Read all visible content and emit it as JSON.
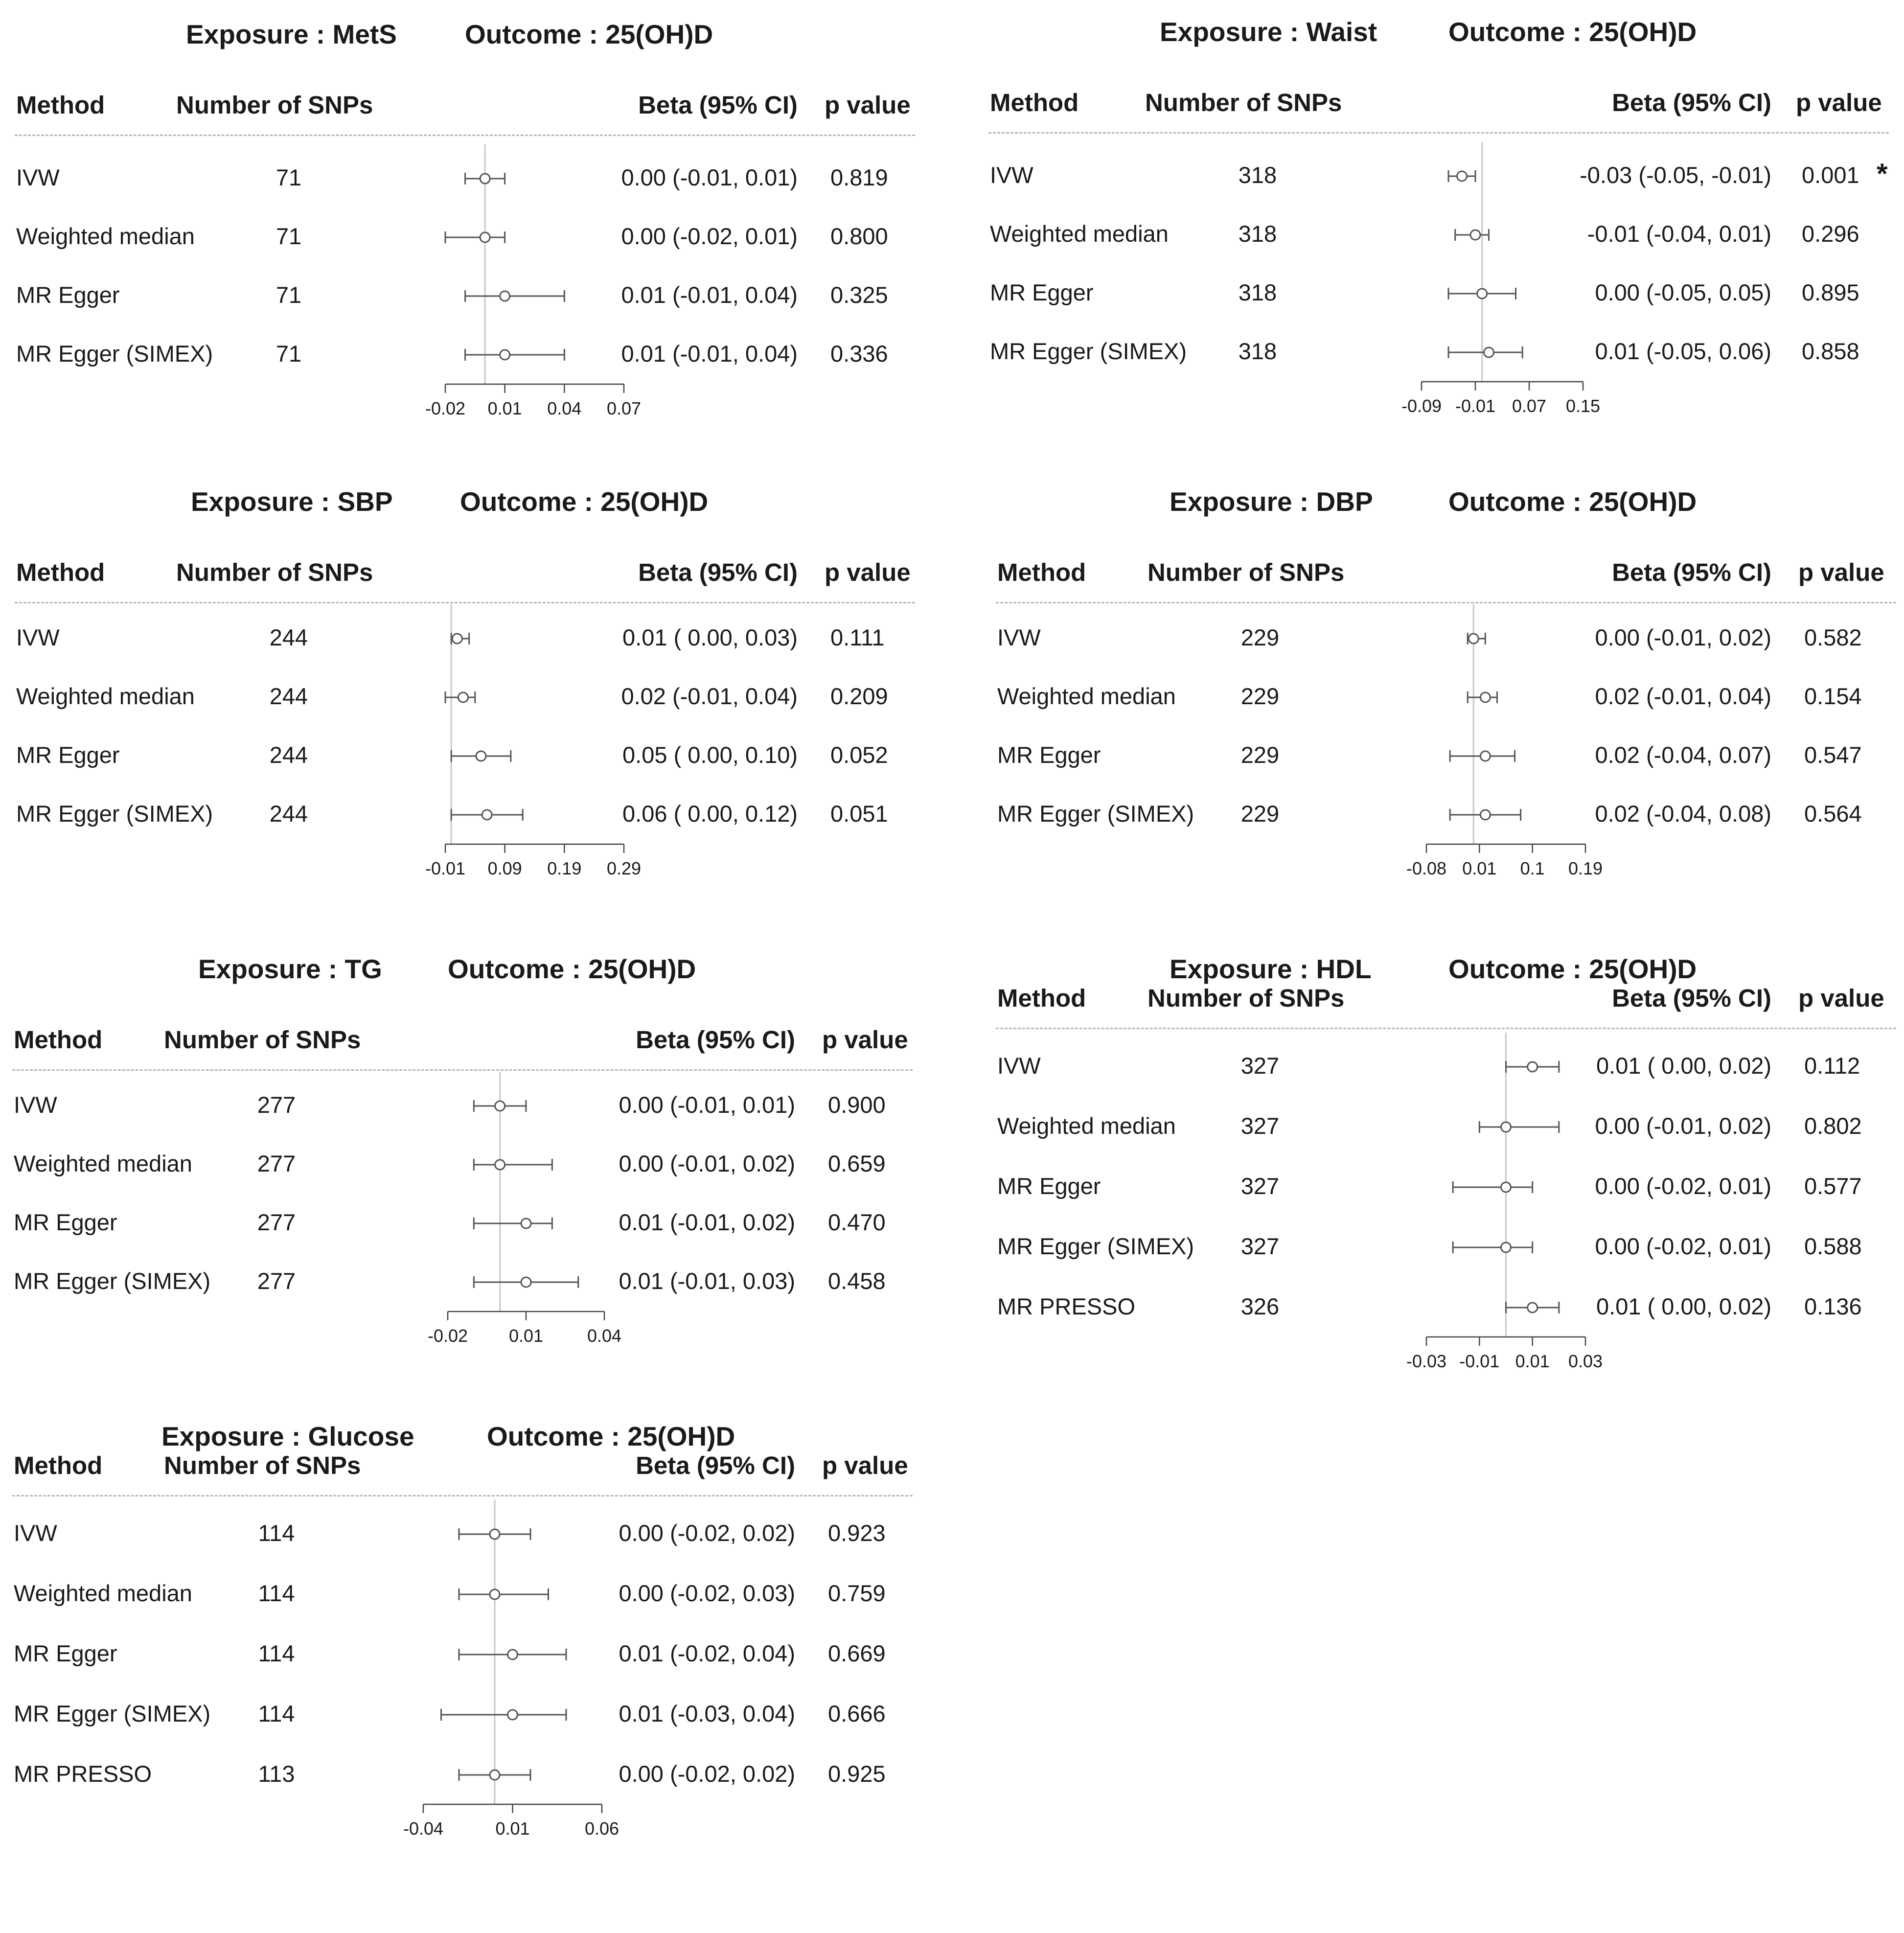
{
  "headers": {
    "method": "Method",
    "n_snps": "Number of SNPs",
    "beta": "Beta (95% CI)",
    "p": "p value"
  },
  "chart_data": [
    {
      "type": "forest",
      "exposure": "Exposure : MetS",
      "outcome": "Outcome : 25(OH)D",
      "xlim": [
        -0.02,
        0.07
      ],
      "ticks": [
        "-0.02",
        "0.01",
        "0.04",
        "0.07"
      ],
      "tick_values": [
        -0.02,
        0.01,
        0.04,
        0.07
      ],
      "ref": 0,
      "rows": [
        {
          "method": "IVW",
          "n": "71",
          "est": 0.0,
          "lo": -0.01,
          "hi": 0.01,
          "ci_text": "0.00 (-0.01, 0.01)",
          "p": "0.819",
          "flag": ""
        },
        {
          "method": "Weighted median",
          "n": "71",
          "est": 0.0,
          "lo": -0.02,
          "hi": 0.01,
          "ci_text": "0.00 (-0.02, 0.01)",
          "p": "0.800",
          "flag": ""
        },
        {
          "method": "MR Egger",
          "n": "71",
          "est": 0.01,
          "lo": -0.01,
          "hi": 0.04,
          "ci_text": "0.01 (-0.01, 0.04)",
          "p": "0.325",
          "flag": ""
        },
        {
          "method": "MR Egger (SIMEX)",
          "n": "71",
          "est": 0.01,
          "lo": -0.01,
          "hi": 0.04,
          "ci_text": "0.01 (-0.01, 0.04)",
          "p": "0.336",
          "flag": ""
        }
      ]
    },
    {
      "type": "forest",
      "exposure": "Exposure : Waist",
      "outcome": "Outcome : 25(OH)D",
      "xlim": [
        -0.09,
        0.15
      ],
      "ticks": [
        "-0.09",
        "-0.01",
        "0.07",
        "0.15"
      ],
      "tick_values": [
        -0.09,
        -0.01,
        0.07,
        0.15
      ],
      "ref": 0,
      "rows": [
        {
          "method": "IVW",
          "n": "318",
          "est": -0.03,
          "lo": -0.05,
          "hi": -0.01,
          "ci_text": "-0.03 (-0.05, -0.01)",
          "p": "0.001",
          "flag": "*"
        },
        {
          "method": "Weighted median",
          "n": "318",
          "est": -0.01,
          "lo": -0.04,
          "hi": 0.01,
          "ci_text": "-0.01 (-0.04,  0.01)",
          "p": "0.296",
          "flag": ""
        },
        {
          "method": "MR Egger",
          "n": "318",
          "est": 0.0,
          "lo": -0.05,
          "hi": 0.05,
          "ci_text": "0.00 (-0.05,  0.05)",
          "p": "0.895",
          "flag": ""
        },
        {
          "method": "MR Egger (SIMEX)",
          "n": "318",
          "est": 0.01,
          "lo": -0.05,
          "hi": 0.06,
          "ci_text": "0.01 (-0.05,  0.06)",
          "p": "0.858",
          "flag": ""
        }
      ]
    },
    {
      "type": "forest",
      "exposure": "Exposure : SBP",
      "outcome": "Outcome : 25(OH)D",
      "xlim": [
        -0.01,
        0.29
      ],
      "ticks": [
        "-0.01",
        "0.09",
        "0.19",
        "0.29"
      ],
      "tick_values": [
        -0.01,
        0.09,
        0.19,
        0.29
      ],
      "ref": 0,
      "rows": [
        {
          "method": "IVW",
          "n": "244",
          "est": 0.01,
          "lo": 0.0,
          "hi": 0.03,
          "ci_text": "0.01 ( 0.00, 0.03)",
          "p": "0.111",
          "flag": ""
        },
        {
          "method": "Weighted median",
          "n": "244",
          "est": 0.02,
          "lo": -0.01,
          "hi": 0.04,
          "ci_text": "0.02 (-0.01, 0.04)",
          "p": "0.209",
          "flag": ""
        },
        {
          "method": "MR Egger",
          "n": "244",
          "est": 0.05,
          "lo": 0.0,
          "hi": 0.1,
          "ci_text": "0.05 ( 0.00, 0.10)",
          "p": "0.052",
          "flag": ""
        },
        {
          "method": "MR Egger (SIMEX)",
          "n": "244",
          "est": 0.06,
          "lo": 0.0,
          "hi": 0.12,
          "ci_text": "0.06 ( 0.00, 0.12)",
          "p": "0.051",
          "flag": ""
        }
      ]
    },
    {
      "type": "forest",
      "exposure": "Exposure : DBP",
      "outcome": "Outcome : 25(OH)D",
      "xlim": [
        -0.08,
        0.19
      ],
      "ticks": [
        "-0.08",
        "0.01",
        "0.1",
        "0.19"
      ],
      "tick_values": [
        -0.08,
        0.01,
        0.1,
        0.19
      ],
      "ref": 0,
      "rows": [
        {
          "method": "IVW",
          "n": "229",
          "est": 0.0,
          "lo": -0.01,
          "hi": 0.02,
          "ci_text": "0.00 (-0.01, 0.02)",
          "p": "0.582",
          "flag": ""
        },
        {
          "method": "Weighted median",
          "n": "229",
          "est": 0.02,
          "lo": -0.01,
          "hi": 0.04,
          "ci_text": "0.02 (-0.01, 0.04)",
          "p": "0.154",
          "flag": ""
        },
        {
          "method": "MR Egger",
          "n": "229",
          "est": 0.02,
          "lo": -0.04,
          "hi": 0.07,
          "ci_text": "0.02 (-0.04, 0.07)",
          "p": "0.547",
          "flag": ""
        },
        {
          "method": "MR Egger (SIMEX)",
          "n": "229",
          "est": 0.02,
          "lo": -0.04,
          "hi": 0.08,
          "ci_text": "0.02 (-0.04, 0.08)",
          "p": "0.564",
          "flag": ""
        }
      ]
    },
    {
      "type": "forest",
      "exposure": "Exposure : TG",
      "outcome": "Outcome : 25(OH)D",
      "xlim": [
        -0.02,
        0.04
      ],
      "ticks": [
        "-0.02",
        "0.01",
        "0.04"
      ],
      "tick_values": [
        -0.02,
        0.01,
        0.04
      ],
      "ref": 0,
      "rows": [
        {
          "method": "IVW",
          "n": "277",
          "est": 0.0,
          "lo": -0.01,
          "hi": 0.01,
          "ci_text": "0.00 (-0.01, 0.01)",
          "p": "0.900",
          "flag": ""
        },
        {
          "method": "Weighted median",
          "n": "277",
          "est": 0.0,
          "lo": -0.01,
          "hi": 0.02,
          "ci_text": "0.00 (-0.01, 0.02)",
          "p": "0.659",
          "flag": ""
        },
        {
          "method": "MR Egger",
          "n": "277",
          "est": 0.01,
          "lo": -0.01,
          "hi": 0.02,
          "ci_text": "0.01 (-0.01, 0.02)",
          "p": "0.470",
          "flag": ""
        },
        {
          "method": "MR Egger (SIMEX)",
          "n": "277",
          "est": 0.01,
          "lo": -0.01,
          "hi": 0.03,
          "ci_text": "0.01 (-0.01, 0.03)",
          "p": "0.458",
          "flag": ""
        }
      ]
    },
    {
      "type": "forest",
      "exposure": "Exposure : HDL",
      "outcome": "Outcome : 25(OH)D",
      "xlim": [
        -0.03,
        0.03
      ],
      "ticks": [
        "-0.03",
        "-0.01",
        "0.01",
        "0.03"
      ],
      "tick_values": [
        -0.03,
        -0.01,
        0.01,
        0.03
      ],
      "ref": 0,
      "rows": [
        {
          "method": "IVW",
          "n": "327",
          "est": 0.01,
          "lo": 0.0,
          "hi": 0.02,
          "ci_text": "0.01 ( 0.00, 0.02)",
          "p": "0.112",
          "flag": ""
        },
        {
          "method": "Weighted median",
          "n": "327",
          "est": 0.0,
          "lo": -0.01,
          "hi": 0.02,
          "ci_text": "0.00 (-0.01, 0.02)",
          "p": "0.802",
          "flag": ""
        },
        {
          "method": "MR Egger",
          "n": "327",
          "est": 0.0,
          "lo": -0.02,
          "hi": 0.01,
          "ci_text": "0.00 (-0.02, 0.01)",
          "p": "0.577",
          "flag": ""
        },
        {
          "method": "MR Egger (SIMEX)",
          "n": "327",
          "est": 0.0,
          "lo": -0.02,
          "hi": 0.01,
          "ci_text": "0.00 (-0.02, 0.01)",
          "p": "0.588",
          "flag": ""
        },
        {
          "method": "MR PRESSO",
          "n": "326",
          "est": 0.01,
          "lo": 0.0,
          "hi": 0.02,
          "ci_text": "0.01 ( 0.00, 0.02)",
          "p": "0.136",
          "flag": ""
        }
      ]
    },
    {
      "type": "forest",
      "exposure": "Exposure : Glucose",
      "outcome": "Outcome : 25(OH)D",
      "xlim": [
        -0.04,
        0.06
      ],
      "ticks": [
        "-0.04",
        "0.01",
        "0.06"
      ],
      "tick_values": [
        -0.04,
        0.01,
        0.06
      ],
      "ref": 0,
      "rows": [
        {
          "method": "IVW",
          "n": "114",
          "est": 0.0,
          "lo": -0.02,
          "hi": 0.02,
          "ci_text": "0.00 (-0.02, 0.02)",
          "p": "0.923",
          "flag": ""
        },
        {
          "method": "Weighted median",
          "n": "114",
          "est": 0.0,
          "lo": -0.02,
          "hi": 0.03,
          "ci_text": "0.00 (-0.02, 0.03)",
          "p": "0.759",
          "flag": ""
        },
        {
          "method": "MR Egger",
          "n": "114",
          "est": 0.01,
          "lo": -0.02,
          "hi": 0.04,
          "ci_text": "0.01 (-0.02, 0.04)",
          "p": "0.669",
          "flag": ""
        },
        {
          "method": "MR Egger (SIMEX)",
          "n": "114",
          "est": 0.01,
          "lo": -0.03,
          "hi": 0.04,
          "ci_text": "0.01 (-0.03, 0.04)",
          "p": "0.666",
          "flag": ""
        },
        {
          "method": "MR PRESSO",
          "n": "113",
          "est": 0.0,
          "lo": -0.02,
          "hi": 0.02,
          "ci_text": "0.00 (-0.02, 0.02)",
          "p": "0.925",
          "flag": ""
        }
      ]
    }
  ]
}
